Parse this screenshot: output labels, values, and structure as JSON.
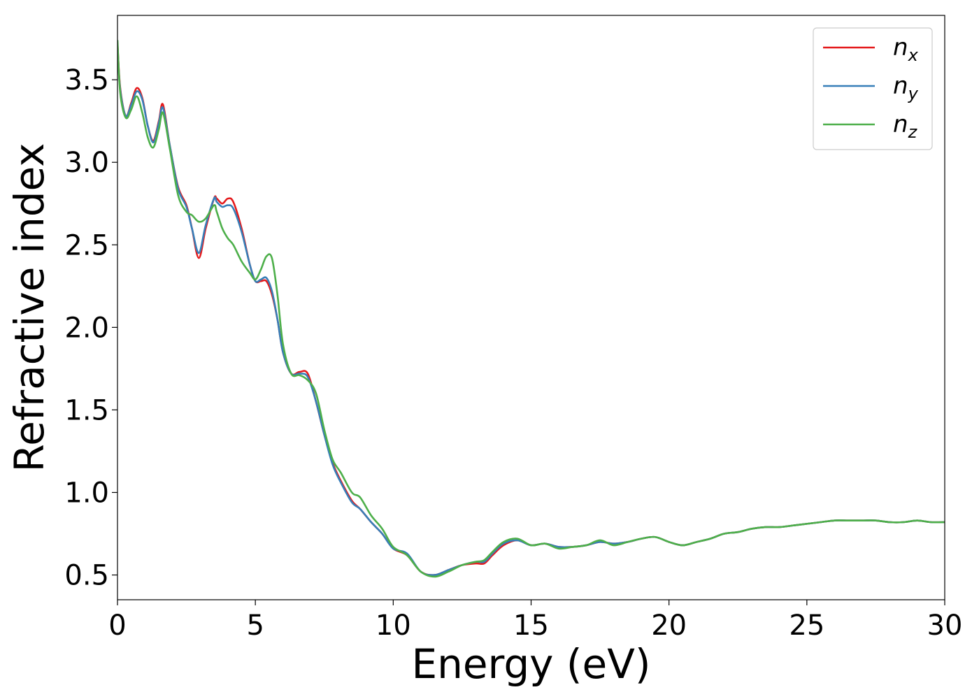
{
  "chart_data": {
    "type": "line",
    "title": "",
    "xlabel": "Energy (eV)",
    "ylabel": "Refractive index",
    "xlim": [
      0,
      30
    ],
    "ylim": [
      0.35,
      3.89
    ],
    "xticks": [
      0,
      5,
      10,
      15,
      20,
      25,
      30
    ],
    "yticks": [
      0.5,
      1.0,
      1.5,
      2.0,
      2.5,
      3.0,
      3.5
    ],
    "xtick_labels": [
      "0",
      "5",
      "10",
      "15",
      "20",
      "25",
      "30"
    ],
    "ytick_labels": [
      "0.5",
      "1.0",
      "1.5",
      "2.0",
      "2.5",
      "3.0",
      "3.5"
    ],
    "grid": false,
    "legend_position": "top-right",
    "series": [
      {
        "name": "n_x",
        "legend_main": "n",
        "legend_sub": "x",
        "color": "#e41a1c",
        "x": [
          0,
          0.1,
          0.3,
          0.5,
          0.7,
          0.9,
          1.1,
          1.3,
          1.5,
          1.65,
          1.9,
          2.2,
          2.5,
          2.7,
          2.95,
          3.2,
          3.5,
          3.6,
          3.8,
          4.0,
          4.2,
          4.5,
          4.8,
          5.0,
          5.2,
          5.4,
          5.6,
          5.8,
          6.0,
          6.3,
          6.6,
          6.9,
          7.2,
          7.5,
          7.8,
          8.1,
          8.5,
          8.8,
          9.2,
          9.6,
          10.0,
          10.5,
          11.0,
          11.5,
          12.0,
          12.5,
          13.0,
          13.3,
          13.6,
          14.0,
          14.5,
          15.0,
          15.5,
          16.0,
          16.5,
          17.0,
          17.5,
          18.0,
          18.5,
          19.0,
          19.5,
          20.0,
          20.5,
          21.0,
          21.5,
          22.0,
          22.5,
          23.0,
          23.5,
          24.0,
          24.5,
          25.0,
          25.5,
          26.0,
          26.5,
          27.0,
          27.5,
          28.0,
          28.5,
          29.0,
          29.5,
          30.0
        ],
        "y": [
          3.72,
          3.45,
          3.28,
          3.36,
          3.45,
          3.39,
          3.22,
          3.13,
          3.25,
          3.35,
          3.1,
          2.85,
          2.74,
          2.6,
          2.42,
          2.6,
          2.78,
          2.78,
          2.75,
          2.78,
          2.76,
          2.6,
          2.38,
          2.28,
          2.28,
          2.28,
          2.2,
          2.05,
          1.85,
          1.72,
          1.73,
          1.72,
          1.55,
          1.35,
          1.18,
          1.07,
          0.95,
          0.9,
          0.82,
          0.75,
          0.66,
          0.62,
          0.52,
          0.5,
          0.53,
          0.56,
          0.57,
          0.57,
          0.62,
          0.68,
          0.71,
          0.68,
          0.69,
          0.67,
          0.67,
          0.68,
          0.7,
          0.69,
          0.7,
          0.72,
          0.73,
          0.7,
          0.68,
          0.7,
          0.72,
          0.75,
          0.76,
          0.78,
          0.79,
          0.79,
          0.8,
          0.81,
          0.82,
          0.83,
          0.83,
          0.83,
          0.83,
          0.82,
          0.82,
          0.83,
          0.82,
          0.82
        ]
      },
      {
        "name": "n_y",
        "legend_main": "n",
        "legend_sub": "y",
        "color": "#377eb8",
        "x": [
          0,
          0.1,
          0.3,
          0.5,
          0.7,
          0.9,
          1.1,
          1.3,
          1.5,
          1.65,
          1.9,
          2.2,
          2.5,
          2.7,
          2.95,
          3.2,
          3.5,
          3.6,
          3.8,
          4.0,
          4.2,
          4.5,
          4.8,
          5.0,
          5.2,
          5.4,
          5.6,
          5.8,
          6.0,
          6.3,
          6.6,
          6.9,
          7.2,
          7.5,
          7.8,
          8.1,
          8.5,
          8.8,
          9.2,
          9.6,
          10.0,
          10.5,
          11.0,
          11.5,
          12.0,
          12.5,
          13.0,
          13.3,
          13.6,
          14.0,
          14.5,
          15.0,
          15.5,
          16.0,
          16.5,
          17.0,
          17.5,
          18.0,
          18.5,
          19.0,
          19.5,
          20.0,
          20.5,
          21.0,
          21.5,
          22.0,
          22.5,
          23.0,
          23.5,
          24.0,
          24.5,
          25.0,
          25.5,
          26.0,
          26.5,
          27.0,
          27.5,
          28.0,
          28.5,
          29.0,
          29.5,
          30.0
        ],
        "y": [
          3.7,
          3.44,
          3.28,
          3.35,
          3.43,
          3.38,
          3.22,
          3.12,
          3.24,
          3.33,
          3.1,
          2.84,
          2.73,
          2.6,
          2.45,
          2.62,
          2.78,
          2.76,
          2.73,
          2.74,
          2.72,
          2.58,
          2.38,
          2.28,
          2.29,
          2.3,
          2.22,
          2.05,
          1.85,
          1.72,
          1.72,
          1.7,
          1.55,
          1.35,
          1.17,
          1.06,
          0.94,
          0.9,
          0.82,
          0.75,
          0.66,
          0.63,
          0.52,
          0.5,
          0.53,
          0.56,
          0.58,
          0.58,
          0.63,
          0.69,
          0.71,
          0.68,
          0.69,
          0.67,
          0.67,
          0.68,
          0.7,
          0.69,
          0.7,
          0.72,
          0.73,
          0.7,
          0.68,
          0.7,
          0.72,
          0.75,
          0.76,
          0.78,
          0.79,
          0.79,
          0.8,
          0.81,
          0.82,
          0.83,
          0.83,
          0.83,
          0.83,
          0.82,
          0.82,
          0.83,
          0.82,
          0.82
        ]
      },
      {
        "name": "n_z",
        "legend_main": "n",
        "legend_sub": "z",
        "color": "#4daf4a",
        "x": [
          0,
          0.1,
          0.3,
          0.5,
          0.7,
          0.9,
          1.1,
          1.3,
          1.5,
          1.65,
          1.9,
          2.2,
          2.5,
          2.7,
          2.95,
          3.2,
          3.5,
          3.6,
          3.8,
          4.0,
          4.2,
          4.5,
          4.8,
          5.0,
          5.2,
          5.4,
          5.6,
          5.8,
          6.0,
          6.3,
          6.6,
          6.9,
          7.2,
          7.5,
          7.8,
          8.1,
          8.5,
          8.8,
          9.2,
          9.6,
          10.0,
          10.5,
          11.0,
          11.5,
          12.0,
          12.5,
          13.0,
          13.3,
          13.6,
          14.0,
          14.5,
          15.0,
          15.5,
          16.0,
          16.5,
          17.0,
          17.5,
          18.0,
          18.5,
          19.0,
          19.5,
          20.0,
          20.5,
          21.0,
          21.5,
          22.0,
          22.5,
          23.0,
          23.5,
          24.0,
          24.5,
          25.0,
          25.5,
          26.0,
          26.5,
          27.0,
          27.5,
          28.0,
          28.5,
          29.0,
          29.5,
          30.0
        ],
        "y": [
          3.74,
          3.42,
          3.27,
          3.32,
          3.4,
          3.3,
          3.15,
          3.09,
          3.2,
          3.3,
          3.08,
          2.8,
          2.7,
          2.68,
          2.64,
          2.66,
          2.74,
          2.7,
          2.6,
          2.54,
          2.5,
          2.4,
          2.33,
          2.29,
          2.35,
          2.43,
          2.42,
          2.2,
          1.9,
          1.72,
          1.71,
          1.68,
          1.6,
          1.38,
          1.2,
          1.12,
          1.0,
          0.97,
          0.86,
          0.78,
          0.67,
          0.62,
          0.52,
          0.49,
          0.52,
          0.56,
          0.58,
          0.59,
          0.64,
          0.7,
          0.72,
          0.68,
          0.69,
          0.66,
          0.67,
          0.68,
          0.71,
          0.68,
          0.7,
          0.72,
          0.73,
          0.7,
          0.68,
          0.7,
          0.72,
          0.75,
          0.76,
          0.78,
          0.79,
          0.79,
          0.8,
          0.81,
          0.82,
          0.83,
          0.83,
          0.83,
          0.83,
          0.82,
          0.82,
          0.83,
          0.82,
          0.82
        ]
      }
    ]
  }
}
